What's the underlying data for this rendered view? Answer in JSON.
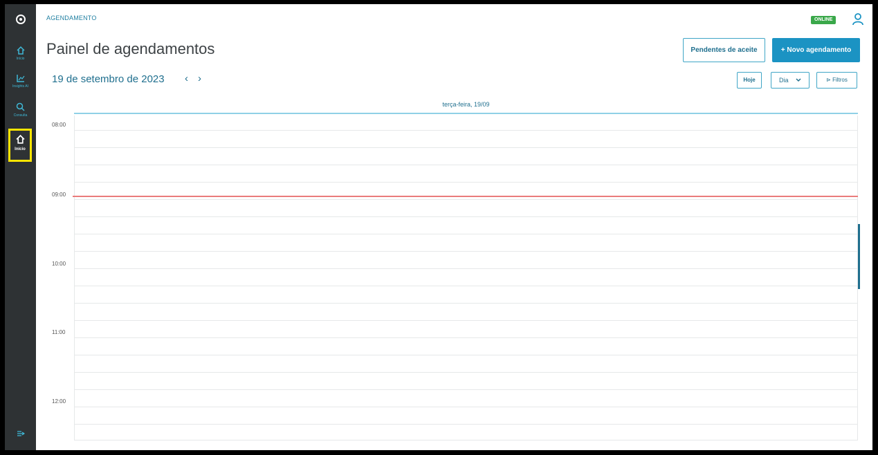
{
  "sidebar": {
    "logo_icon": "circle-logo-icon",
    "items": [
      {
        "icon": "home-icon",
        "label": "Início"
      },
      {
        "icon": "chart-icon",
        "label": "Insights AI"
      },
      {
        "icon": "search-icon",
        "label": "Consulta"
      }
    ],
    "active_item": {
      "icon": "home-icon",
      "label": "Início"
    },
    "expand_icon": "expand-menu-icon"
  },
  "header": {
    "breadcrumb": "AGENDAMENTO",
    "status_badge": "ONLINE",
    "user_icon": "user-icon",
    "page_title": "Painel de agendamentos",
    "pendentes_label": "Pendentes de aceite",
    "novo_label": "+ Novo agendamento"
  },
  "toolbar": {
    "date": "19 de setembro de 2023",
    "prev": "‹",
    "next": "›",
    "hoje_label": "Hoje",
    "view_label": "Dia",
    "view_chevron": "chevron-down-icon",
    "filtros_label": "⊳ Filtros"
  },
  "calendar": {
    "day_header": "terça-feira, 19/09",
    "times": [
      "08:00",
      "09:00",
      "10:00",
      "11:00",
      "12:00"
    ],
    "colors": {
      "now_line": "#ea7b7b",
      "accent": "#1b93c3",
      "sidebar": "#2e3234",
      "active_highlight": "#ffe600"
    }
  }
}
